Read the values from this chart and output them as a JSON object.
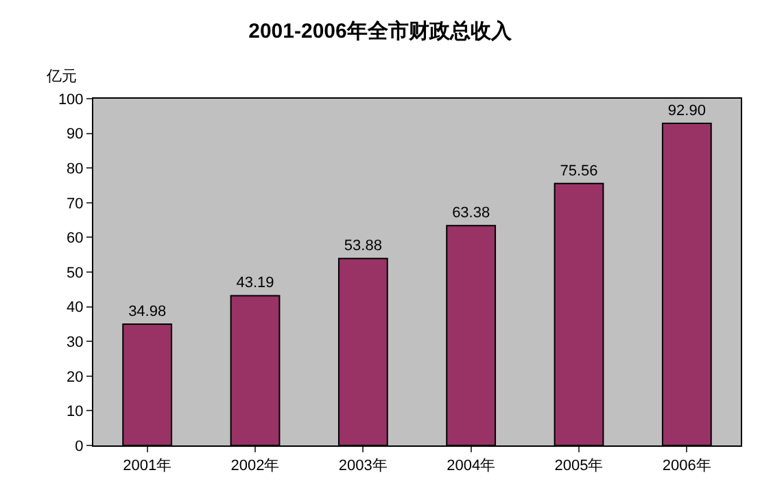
{
  "chart_data": {
    "type": "bar",
    "title": "2001-2006年全市财政总收入",
    "ylabel": "亿元",
    "categories": [
      "2001年",
      "2002年",
      "2003年",
      "2004年",
      "2005年",
      "2006年"
    ],
    "values": [
      34.98,
      43.19,
      53.88,
      63.38,
      75.56,
      92.9
    ],
    "value_labels": [
      "34.98",
      "43.19",
      "53.88",
      "63.38",
      "75.56",
      "92.90"
    ],
    "color": "#993366",
    "ylim": [
      0,
      100
    ],
    "yticks": [
      0,
      10,
      20,
      30,
      40,
      50,
      60,
      70,
      80,
      90,
      100
    ],
    "grid": false,
    "legend": false
  }
}
